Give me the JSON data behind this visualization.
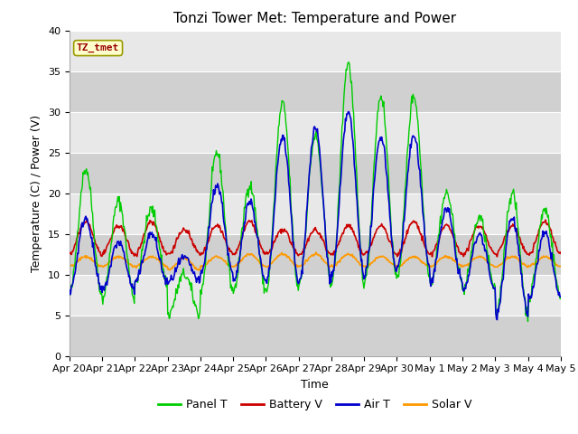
{
  "title": "Tonzi Tower Met: Temperature and Power",
  "xlabel": "Time",
  "ylabel": "Temperature (C) / Power (V)",
  "ylim": [
    0,
    40
  ],
  "yticks": [
    0,
    5,
    10,
    15,
    20,
    25,
    30,
    35,
    40
  ],
  "x_tick_labels": [
    "Apr 20",
    "Apr 21",
    "Apr 22",
    "Apr 23",
    "Apr 24",
    "Apr 25",
    "Apr 26",
    "Apr 27",
    "Apr 28",
    "Apr 29",
    "Apr 30",
    "May 1",
    "May 2",
    "May 3",
    "May 4",
    "May 5"
  ],
  "legend_labels": [
    "Panel T",
    "Battery V",
    "Air T",
    "Solar V"
  ],
  "legend_colors": [
    "#00cc00",
    "#cc0000",
    "#0000cc",
    "#ff9900"
  ],
  "annotation_text": "TZ_tmet",
  "annotation_color": "#990000",
  "annotation_bg": "#ffffcc",
  "annotation_edge": "#999900",
  "bg_color": "#e0e0e0",
  "stripe_color_dark": "#d0d0d0",
  "stripe_color_light": "#e8e8e8",
  "title_fontsize": 11,
  "tick_fontsize": 8,
  "ylabel_fontsize": 9,
  "n_days": 15,
  "panel_day_data": [
    [
      7.5,
      23
    ],
    [
      7,
      19
    ],
    [
      9,
      18
    ],
    [
      5,
      10
    ],
    [
      8,
      25
    ],
    [
      8,
      21
    ],
    [
      8,
      31
    ],
    [
      9,
      27
    ],
    [
      9,
      36
    ],
    [
      9,
      32
    ],
    [
      10,
      32
    ],
    [
      9,
      20
    ],
    [
      8,
      17
    ],
    [
      5,
      20
    ],
    [
      7,
      18
    ]
  ],
  "air_day_data": [
    [
      8,
      17
    ],
    [
      8,
      14
    ],
    [
      9,
      15
    ],
    [
      9,
      12
    ],
    [
      10,
      21
    ],
    [
      9,
      19
    ],
    [
      9,
      27
    ],
    [
      9,
      28
    ],
    [
      10,
      30
    ],
    [
      10,
      27
    ],
    [
      11,
      27
    ],
    [
      9,
      18
    ],
    [
      8,
      15
    ],
    [
      5,
      17
    ],
    [
      7,
      15
    ]
  ],
  "battery_day_data": [
    [
      12.5,
      16.5
    ],
    [
      12.5,
      16
    ],
    [
      12.5,
      16.5
    ],
    [
      12.5,
      15.5
    ],
    [
      12.5,
      16
    ],
    [
      12.5,
      16.5
    ],
    [
      12.5,
      15.5
    ],
    [
      12.5,
      15.5
    ],
    [
      12.5,
      16
    ],
    [
      12.5,
      16
    ],
    [
      12.5,
      16.5
    ],
    [
      12.5,
      16
    ],
    [
      12.5,
      16
    ],
    [
      12.5,
      16
    ],
    [
      12.5,
      16.5
    ]
  ],
  "solar_day_data": [
    [
      11.0,
      12.2
    ],
    [
      11.0,
      12.2
    ],
    [
      11.0,
      12.2
    ],
    [
      10.5,
      12.0
    ],
    [
      11.0,
      12.2
    ],
    [
      11.0,
      12.5
    ],
    [
      11.0,
      12.5
    ],
    [
      11.0,
      12.5
    ],
    [
      11.0,
      12.5
    ],
    [
      11.0,
      12.2
    ],
    [
      11.0,
      12.2
    ],
    [
      11.0,
      12.2
    ],
    [
      11.0,
      12.2
    ],
    [
      11.0,
      12.2
    ],
    [
      11.0,
      12.2
    ]
  ]
}
